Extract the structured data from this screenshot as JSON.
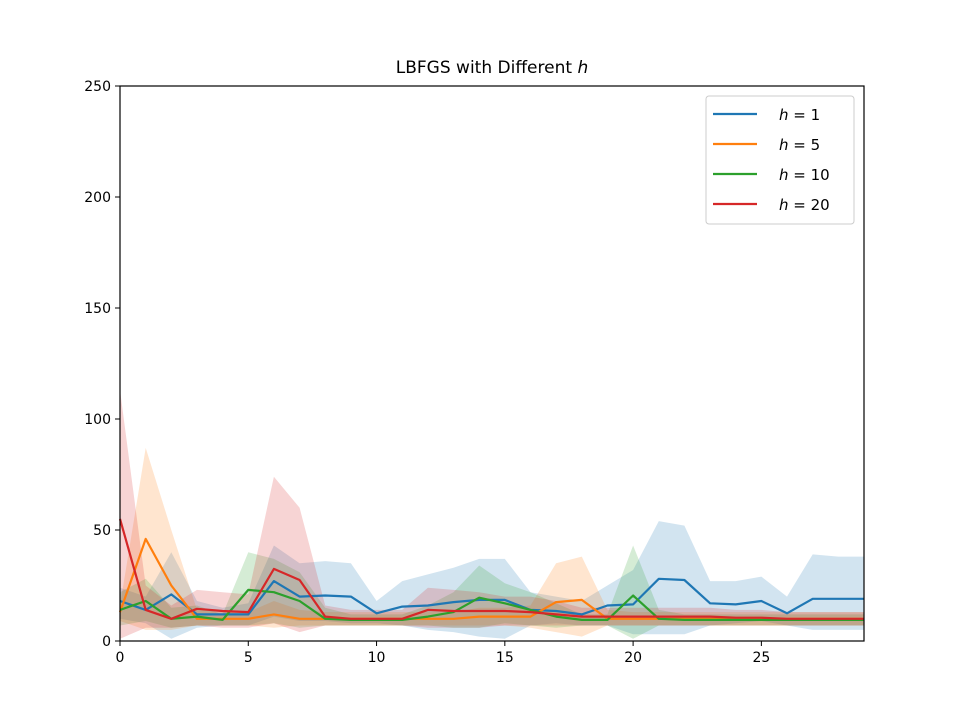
{
  "chart_data": {
    "type": "line",
    "title": "LBFGS with Different",
    "title_var": "h",
    "xlabel": "",
    "ylabel": "",
    "xlim": [
      0,
      29
    ],
    "ylim": [
      0,
      250
    ],
    "xticks": [
      0,
      5,
      10,
      15,
      20,
      25
    ],
    "yticks": [
      0,
      50,
      100,
      150,
      200,
      250
    ],
    "grid": false,
    "legend_position": "top-right",
    "x": [
      0,
      1,
      2,
      3,
      4,
      5,
      6,
      7,
      8,
      9,
      10,
      11,
      12,
      13,
      14,
      15,
      16,
      17,
      18,
      19,
      20,
      21,
      22,
      23,
      24,
      25,
      26,
      27,
      28,
      29
    ],
    "series": [
      {
        "name": "h = 1",
        "legend_var": "h",
        "legend_val": "1",
        "color": "#1f77b4",
        "values": [
          18,
          14,
          21,
          12,
          12,
          12,
          27,
          20,
          20.5,
          20,
          12.5,
          15.5,
          16,
          17.5,
          18.5,
          18.5,
          14,
          13.5,
          12,
          16,
          16.5,
          28,
          27.5,
          17,
          16.5,
          18,
          12.5,
          19,
          19,
          19
        ],
        "band_upper": [
          24,
          20,
          40,
          18,
          15,
          17,
          43,
          35,
          36,
          35,
          18,
          27,
          30,
          33,
          37,
          37,
          22,
          20,
          18,
          25,
          32,
          54,
          52,
          27,
          27,
          29,
          20,
          39,
          38,
          38
        ],
        "band_lower": [
          10,
          8,
          1,
          6,
          7,
          7,
          11,
          9,
          9,
          8,
          8,
          7,
          5,
          4,
          2,
          1,
          7,
          8,
          7,
          7,
          3,
          3,
          3,
          7,
          8,
          9,
          7,
          5,
          5,
          5
        ]
      },
      {
        "name": "h = 5",
        "legend_var": "h",
        "legend_val": "5",
        "color": "#ff7f0e",
        "values": [
          13,
          46,
          25,
          10,
          10,
          10,
          12,
          10,
          10,
          10,
          10,
          10,
          10,
          10,
          11,
          11,
          11,
          17.5,
          18.5,
          10,
          10,
          10,
          10,
          10,
          10,
          10,
          10,
          10,
          10,
          10
        ],
        "band_upper": [
          16,
          87,
          50,
          14,
          13,
          13,
          18,
          14,
          13,
          13,
          13,
          13,
          13,
          13,
          15,
          15,
          16,
          35,
          38,
          14,
          13,
          13,
          13,
          13,
          13,
          13,
          13,
          13,
          13,
          13
        ],
        "band_lower": [
          9,
          5,
          5,
          7,
          7,
          7,
          6,
          7,
          7,
          7,
          7,
          7,
          7,
          7,
          7,
          7,
          6,
          4,
          2,
          7,
          7,
          7,
          7,
          7,
          7,
          7,
          7,
          7,
          7,
          7
        ]
      },
      {
        "name": "h = 10",
        "legend_var": "h",
        "legend_val": "10",
        "color": "#2ca02c",
        "values": [
          14,
          18,
          10,
          11,
          9.5,
          23,
          22,
          18,
          10,
          9.5,
          9.5,
          9.5,
          11,
          13,
          19.5,
          17,
          14,
          11,
          9.5,
          9.5,
          20.5,
          10,
          9.5,
          9.5,
          9.5,
          9.5,
          9.5,
          9.5,
          9.5,
          9.5
        ],
        "band_upper": [
          22,
          28,
          15,
          16,
          12,
          40,
          37,
          31,
          15,
          12,
          12,
          12,
          16,
          22,
          34,
          26,
          22,
          17,
          12,
          12,
          43,
          14,
          12,
          12,
          12,
          12,
          12,
          12,
          12,
          12
        ],
        "band_lower": [
          7,
          9,
          6,
          7,
          7,
          7,
          8,
          6,
          7,
          7,
          7,
          7,
          7,
          6,
          6,
          8,
          7,
          6,
          7,
          7,
          1,
          7,
          7,
          7,
          7,
          7,
          7,
          7,
          7,
          7
        ]
      },
      {
        "name": "h = 20",
        "legend_var": "h",
        "legend_val": "20",
        "color": "#d62728",
        "values": [
          55,
          14,
          10,
          14.5,
          13.5,
          13,
          32.5,
          27.5,
          11,
          10,
          10,
          10,
          14,
          13.5,
          13.5,
          13.5,
          13,
          12,
          11,
          11,
          11,
          11,
          11,
          11,
          10.5,
          10.5,
          10,
          10,
          10,
          10
        ],
        "band_upper": [
          113,
          25,
          16,
          23,
          22,
          21,
          74,
          60,
          16,
          14,
          14,
          14,
          24,
          23,
          22,
          20,
          20,
          18,
          15,
          15,
          15,
          15,
          15,
          15,
          14,
          14,
          13,
          13,
          13,
          13
        ],
        "band_lower": [
          1,
          6,
          6,
          7,
          6,
          6,
          8,
          4,
          7,
          7,
          7,
          7,
          6,
          6,
          6,
          7,
          7,
          7,
          7,
          7,
          7,
          7,
          7,
          7,
          7,
          7,
          7,
          7,
          7,
          7
        ]
      }
    ]
  }
}
